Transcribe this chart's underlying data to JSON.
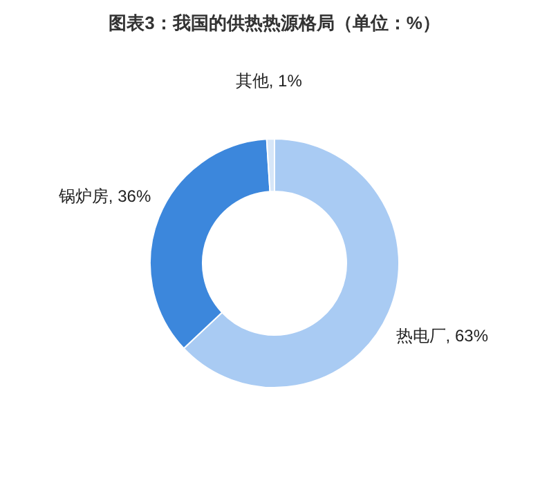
{
  "chart_data": {
    "type": "donut",
    "title": "图表3：我国的供热热源格局（单位：%）",
    "categories": [
      "热电厂",
      "锅炉房",
      "其他"
    ],
    "values": [
      63,
      36,
      1
    ],
    "colors": [
      "#a9cbf3",
      "#3c87dc",
      "#d6e6f8"
    ],
    "value_labels": [
      "63%",
      "36%",
      "1%"
    ],
    "legend": false
  }
}
